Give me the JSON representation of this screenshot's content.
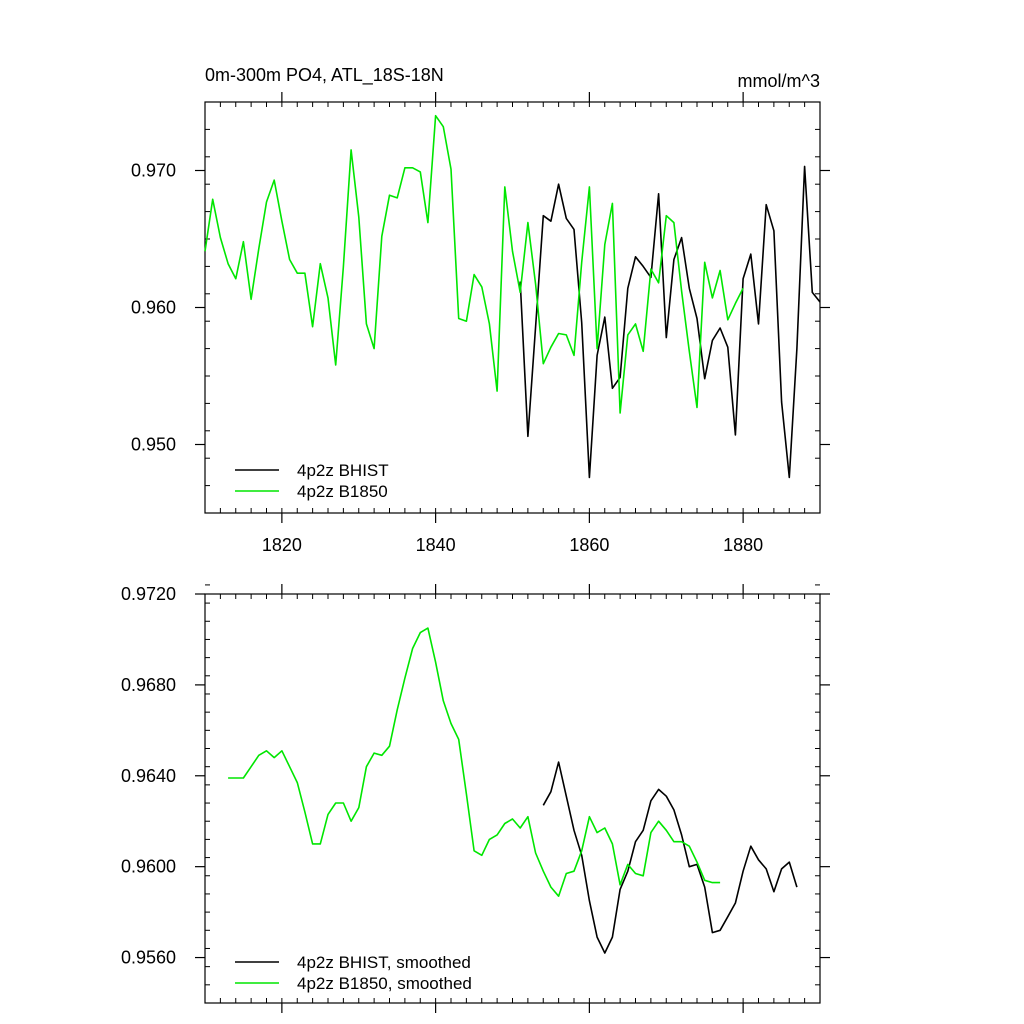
{
  "chart_data": [
    {
      "type": "line",
      "title_left": "0m-300m PO4, ATL_18S-18N",
      "title_right": "mmol/m^3",
      "xlabel": "",
      "ylabel": "",
      "xlim": [
        1810,
        1890
      ],
      "ylim": [
        0.945,
        0.975
      ],
      "xticks": [
        1820,
        1840,
        1860,
        1880
      ],
      "xtick_labels": [
        "1820",
        "1840",
        "1860",
        "1880"
      ],
      "yticks": [
        0.95,
        0.96,
        0.97
      ],
      "ytick_labels": [
        "0.950",
        "0.960",
        "0.970"
      ],
      "xminor": 2,
      "yminor": 0.002,
      "legend": {
        "placement": "bottom-left"
      },
      "series": [
        {
          "name": "4p2z BHIST",
          "color": "#000000",
          "x": [
            1851,
            1852,
            1853,
            1854,
            1855,
            1856,
            1857,
            1858,
            1859,
            1860,
            1861,
            1862,
            1863,
            1864,
            1865,
            1866,
            1867,
            1868,
            1869,
            1870,
            1871,
            1872,
            1873,
            1874,
            1875,
            1876,
            1877,
            1878,
            1879,
            1880,
            1881,
            1882,
            1883,
            1884,
            1885,
            1886,
            1887,
            1888,
            1889,
            1890
          ],
          "y": [
            0.9619,
            0.9506,
            0.9586,
            0.9667,
            0.9663,
            0.969,
            0.9665,
            0.9657,
            0.9589,
            0.9476,
            0.9565,
            0.9593,
            0.9541,
            0.9549,
            0.9614,
            0.9637,
            0.963,
            0.9622,
            0.9683,
            0.9578,
            0.9635,
            0.9651,
            0.9614,
            0.9592,
            0.9548,
            0.9576,
            0.9585,
            0.9571,
            0.9507,
            0.9621,
            0.9639,
            0.9588,
            0.9675,
            0.9656,
            0.9531,
            0.9476,
            0.957,
            0.9703,
            0.9611,
            0.9604
          ]
        },
        {
          "name": "4p2z B1850",
          "color": "#00e600",
          "x": [
            1810,
            1811,
            1812,
            1813,
            1814,
            1815,
            1816,
            1817,
            1818,
            1819,
            1820,
            1821,
            1822,
            1823,
            1824,
            1825,
            1826,
            1827,
            1828,
            1829,
            1830,
            1831,
            1832,
            1833,
            1834,
            1835,
            1836,
            1837,
            1838,
            1839,
            1840,
            1841,
            1842,
            1843,
            1844,
            1845,
            1846,
            1847,
            1848,
            1849,
            1850,
            1851,
            1852,
            1853,
            1854,
            1855,
            1856,
            1857,
            1858,
            1859,
            1860,
            1861,
            1862,
            1863,
            1864,
            1865,
            1866,
            1867,
            1868,
            1869,
            1870,
            1871,
            1872,
            1873,
            1874,
            1875,
            1876,
            1877,
            1878,
            1879,
            1880
          ],
          "y": [
            0.9641,
            0.9679,
            0.9651,
            0.9632,
            0.9621,
            0.9648,
            0.9606,
            0.9643,
            0.9677,
            0.9693,
            0.9663,
            0.9635,
            0.9625,
            0.9625,
            0.9586,
            0.9632,
            0.9607,
            0.9558,
            0.963,
            0.9715,
            0.9666,
            0.9588,
            0.957,
            0.9652,
            0.9682,
            0.968,
            0.9702,
            0.9702,
            0.9699,
            0.9662,
            0.974,
            0.9732,
            0.9701,
            0.9592,
            0.959,
            0.9624,
            0.9615,
            0.9588,
            0.9539,
            0.9688,
            0.9641,
            0.9611,
            0.9662,
            0.9617,
            0.9559,
            0.9571,
            0.9581,
            0.958,
            0.9565,
            0.9633,
            0.9688,
            0.957,
            0.9646,
            0.9676,
            0.9523,
            0.958,
            0.9588,
            0.9568,
            0.9628,
            0.9618,
            0.9667,
            0.9662,
            0.9612,
            0.9568,
            0.9527,
            0.9633,
            0.9607,
            0.9627,
            0.9591,
            0.9603,
            0.9614
          ]
        }
      ]
    },
    {
      "type": "line",
      "title_left": "",
      "title_right": "",
      "xlabel": "",
      "ylabel": "",
      "xlim": [
        1810,
        1890
      ],
      "ylim": [
        0.954,
        0.972
      ],
      "xticks": [
        1820,
        1840,
        1860,
        1880
      ],
      "xtick_labels": [],
      "yticks": [
        0.956,
        0.96,
        0.964,
        0.968,
        0.972
      ],
      "ytick_labels": [
        "0.9560",
        "0.9600",
        "0.9640",
        "0.9680",
        "0.9720"
      ],
      "xminor": 2,
      "yminor": 0.0008,
      "legend": {
        "placement": "bottom-left"
      },
      "series": [
        {
          "name": "4p2z BHIST, smoothed",
          "color": "#000000",
          "x": [
            1854,
            1855,
            1856,
            1857,
            1858,
            1859,
            1860,
            1861,
            1862,
            1863,
            1864,
            1865,
            1866,
            1867,
            1868,
            1869,
            1870,
            1871,
            1872,
            1873,
            1874,
            1875,
            1876,
            1877,
            1878,
            1879,
            1880,
            1881,
            1882,
            1883,
            1884,
            1885,
            1886,
            1887
          ],
          "y": [
            0.9627,
            0.9633,
            0.9646,
            0.9631,
            0.9616,
            0.9605,
            0.9585,
            0.9569,
            0.9562,
            0.9569,
            0.959,
            0.9598,
            0.9611,
            0.9616,
            0.9629,
            0.9634,
            0.9631,
            0.9625,
            0.9614,
            0.96,
            0.9601,
            0.9591,
            0.9571,
            0.9572,
            0.9578,
            0.9584,
            0.9598,
            0.9609,
            0.9603,
            0.9599,
            0.9589,
            0.9599,
            0.9602,
            0.9591
          ]
        },
        {
          "name": "4p2z B1850, smoothed",
          "color": "#00e600",
          "x": [
            1813,
            1814,
            1815,
            1816,
            1817,
            1818,
            1819,
            1820,
            1821,
            1822,
            1823,
            1824,
            1825,
            1826,
            1827,
            1828,
            1829,
            1830,
            1831,
            1832,
            1833,
            1834,
            1835,
            1836,
            1837,
            1838,
            1839,
            1840,
            1841,
            1842,
            1843,
            1844,
            1845,
            1846,
            1847,
            1848,
            1849,
            1850,
            1851,
            1852,
            1853,
            1854,
            1855,
            1856,
            1857,
            1858,
            1859,
            1860,
            1861,
            1862,
            1863,
            1864,
            1865,
            1866,
            1867,
            1868,
            1869,
            1870,
            1871,
            1872,
            1873,
            1874,
            1875,
            1876,
            1877
          ],
          "y": [
            0.9639,
            0.9639,
            0.9639,
            0.9644,
            0.9649,
            0.9651,
            0.9648,
            0.9651,
            0.9644,
            0.9637,
            0.9624,
            0.961,
            0.961,
            0.9623,
            0.9628,
            0.9628,
            0.962,
            0.9626,
            0.9644,
            0.965,
            0.9649,
            0.9653,
            0.9669,
            0.9683,
            0.9696,
            0.9703,
            0.9705,
            0.969,
            0.9673,
            0.9663,
            0.9656,
            0.9632,
            0.9607,
            0.9605,
            0.9612,
            0.9614,
            0.9619,
            0.9621,
            0.9617,
            0.9622,
            0.9606,
            0.9598,
            0.9591,
            0.9587,
            0.9597,
            0.9598,
            0.9607,
            0.9622,
            0.9615,
            0.9617,
            0.961,
            0.9592,
            0.9601,
            0.9597,
            0.9596,
            0.9615,
            0.962,
            0.9616,
            0.9611,
            0.9611,
            0.9609,
            0.9602,
            0.9594,
            0.9593,
            0.9593
          ]
        }
      ]
    }
  ]
}
